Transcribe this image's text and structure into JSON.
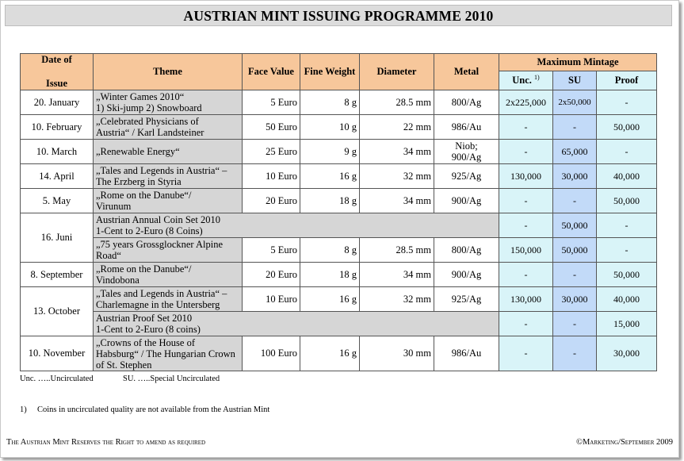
{
  "title": "AUSTRIAN MINT ISSUING PROGRAMME   2010",
  "headers": {
    "date": [
      "Date of",
      "Issue"
    ],
    "theme": "Theme",
    "face_value": "Face Value",
    "fine_weight": "Fine Weight",
    "diameter": "Diameter",
    "metal": "Metal",
    "max_mintage": "Maximum Mintage",
    "unc": "Unc.",
    "unc_note": "1)",
    "su": "SU",
    "proof": "Proof"
  },
  "rows": [
    {
      "date": "20. January",
      "theme": [
        "„Winter Games 2010“",
        "1) Ski-jump 2) Snowboard"
      ],
      "face": "5 Euro",
      "weight": "8 g",
      "diameter": "28.5 mm",
      "metal": [
        "800/Ag"
      ],
      "unc": "2x225,000",
      "su": "2x50,000",
      "proof": "-"
    },
    {
      "date": "10. February",
      "theme": [
        "„Celebrated Physicians of",
        "Austria“ / Karl Landsteiner"
      ],
      "face": "50 Euro",
      "weight": "10 g",
      "diameter": "22 mm",
      "metal": [
        "986/Au"
      ],
      "unc": "-",
      "su": "-",
      "proof": "50,000"
    },
    {
      "date": "10. March",
      "theme": [
        "„Renewable Energy“"
      ],
      "face": "25 Euro",
      "weight": "9 g",
      "diameter": "34 mm",
      "metal": [
        "Niob;",
        "900/Ag"
      ],
      "unc": "-",
      "su": "65,000",
      "proof": "-"
    },
    {
      "date": "14. April",
      "theme": [
        "„Tales and Legends in Austria“ –",
        "The Erzberg in Styria"
      ],
      "face": "10 Euro",
      "weight": "16 g",
      "diameter": "32 mm",
      "metal": [
        "925/Ag"
      ],
      "unc": "130,000",
      "su": "30,000",
      "proof": "40,000"
    },
    {
      "date": "5. May",
      "theme": [
        "„Rome on the Danube“/",
        "Virunum"
      ],
      "face": "20 Euro",
      "weight": "18 g",
      "diameter": "34 mm",
      "metal": [
        "900/Ag"
      ],
      "unc": "-",
      "su": "-",
      "proof": "50,000"
    }
  ],
  "juni": {
    "date": "16. Juni",
    "set": {
      "theme": [
        "Austrian Annual Coin Set 2010",
        "1-Cent to 2-Euro (8 Coins)"
      ],
      "unc": "-",
      "su": "50,000",
      "proof": "-"
    },
    "coin": {
      "theme": [
        "„75 years Grossglockner Alpine",
        "Road“"
      ],
      "face": "5 Euro",
      "weight": "8 g",
      "diameter": "28.5 mm",
      "metal": [
        "800/Ag"
      ],
      "unc": "150,000",
      "su": "50,000",
      "proof": "-"
    }
  },
  "september": {
    "date": "8. September",
    "theme": [
      "„Rome on the Danube“/",
      "Vindobona"
    ],
    "face": "20 Euro",
    "weight": "18 g",
    "diameter": "34 mm",
    "metal": [
      "900/Ag"
    ],
    "unc": "-",
    "su": "-",
    "proof": "50,000"
  },
  "october": {
    "date": "13. October",
    "coin": {
      "theme": [
        "„Tales and Legends in Austria“ –",
        "Charlemagne in the Untersberg"
      ],
      "face": "10 Euro",
      "weight": "16 g",
      "diameter": "32 mm",
      "metal": [
        "925/Ag"
      ],
      "unc": "130,000",
      "su": "30,000",
      "proof": "40,000"
    },
    "set": {
      "theme": [
        "Austrian Proof Set 2010",
        "1-Cent to 2-Euro (8 coins)"
      ],
      "unc": "-",
      "su": "-",
      "proof": "15,000"
    }
  },
  "november": {
    "date": "10. November",
    "theme": [
      "„Crowns of the House of",
      "Habsburg“ / The Hungarian Crown",
      "of St. Stephen"
    ],
    "face": "100 Euro",
    "weight": "16 g",
    "diameter": "30 mm",
    "metal": [
      "986/Au"
    ],
    "unc": "-",
    "su": "-",
    "proof": "30,000"
  },
  "legend": {
    "unc": "Unc. …..Uncirculated",
    "su": "SU. …..Special Uncirculated"
  },
  "footnote": {
    "mark": "1)",
    "text": "Coins in uncirculated quality are not available from the Austrian Mint"
  },
  "footer": {
    "left": "The Austrian Mint Reserves the Right to amend as required",
    "right": "©Marketing/September 2009"
  }
}
